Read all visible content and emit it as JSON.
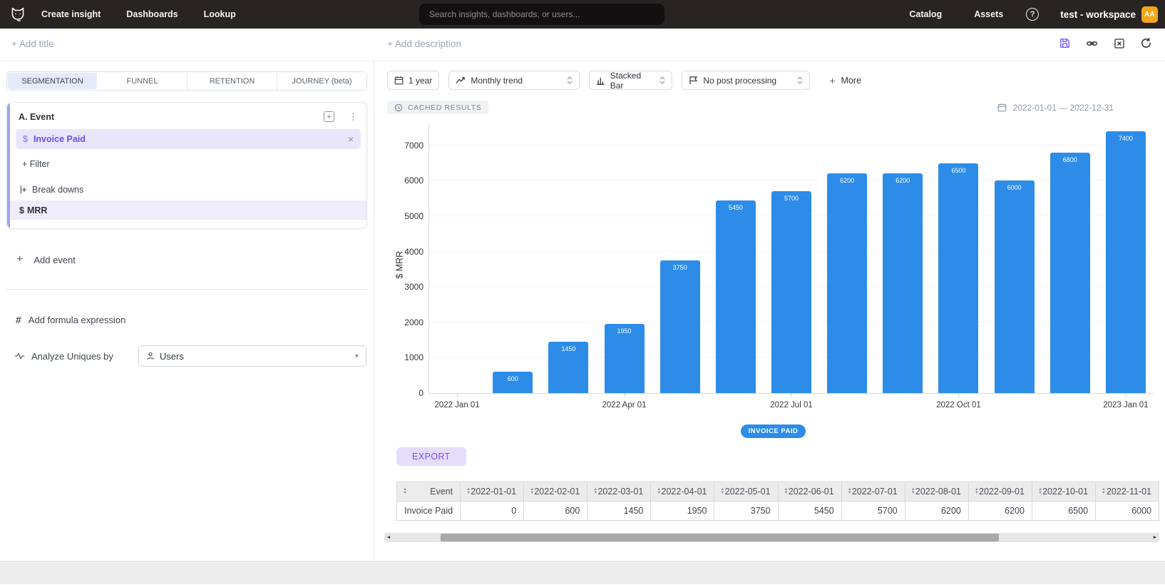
{
  "colors": {
    "accent": "#7b5cfa",
    "bar_blue": "#2d8ce8",
    "avatar": "#f2a71b",
    "nav_bg": "#292424",
    "selected_row_bg": "#e9e6fc"
  },
  "topnav": {
    "items": [
      "Create insight",
      "Dashboards",
      "Lookup"
    ],
    "search_placeholder": "Search insights, dashboards, or users...",
    "catalog": "Catalog",
    "assets": "Assets",
    "workspace": "test - workspace",
    "avatar_initials": "AA"
  },
  "toolbar": {
    "add_title": "+ Add title",
    "add_description": "+ Add description"
  },
  "builder": {
    "tabs": [
      "SEGMENTATION",
      "FUNNEL",
      "RETENTION",
      "JOURNEY (beta)"
    ],
    "active_tab": "SEGMENTATION",
    "event_card": {
      "header": "A.  Event",
      "event_symbol": "$",
      "event_name": "Invoice Paid",
      "filter_label": "+ Filter",
      "breakdowns_label": "Break downs",
      "breakdown_symbol": "$",
      "breakdown_value": "MRR"
    },
    "add_event_label": "Add event",
    "add_formula_label": "Add formula expression",
    "analyze_label": "Analyze Uniques by",
    "analyze_value": "Users"
  },
  "controls": {
    "date_button": "1 year",
    "trend_select": "Monthly trend",
    "chart_type_select": "Stacked Bar",
    "post_processing_select": "No post processing",
    "more_label": "More"
  },
  "results_meta": {
    "cached_badge": "CACHED RESULTS",
    "date_range": "2022-01-01 — 2022-12-31"
  },
  "chart_data": {
    "type": "bar",
    "title": "",
    "xlabel": "",
    "ylabel": "$ MRR",
    "x": [
      "2022-01-01",
      "2022-02-01",
      "2022-03-01",
      "2022-04-01",
      "2022-05-01",
      "2022-06-01",
      "2022-07-01",
      "2022-08-01",
      "2022-09-01",
      "2022-10-01",
      "2022-11-01",
      "2022-12-01",
      "2023-01-01"
    ],
    "series": [
      {
        "name": "INVOICE PAID",
        "values": [
          0,
          600,
          1450,
          1950,
          3750,
          5450,
          5700,
          6200,
          6200,
          6500,
          6000,
          6800,
          7400
        ]
      }
    ],
    "x_tick_labels": [
      {
        "index": 0,
        "label": "2022 Jan 01"
      },
      {
        "index": 3,
        "label": "2022 Apr 01"
      },
      {
        "index": 6,
        "label": "2022 Jul 01"
      },
      {
        "index": 9,
        "label": "2022 Oct 01"
      },
      {
        "index": 12,
        "label": "2023 Jan 01"
      }
    ],
    "y_ticks": [
      0,
      1000,
      2000,
      3000,
      4000,
      5000,
      6000,
      7000
    ],
    "ylim": [
      0,
      7600
    ],
    "grid": true,
    "legend_position": "bottom",
    "bar_color": "#2d8ce8"
  },
  "export_label": "EXPORT",
  "table": {
    "columns": [
      "Event",
      "2022-01-01",
      "2022-02-01",
      "2022-03-01",
      "2022-04-01",
      "2022-05-01",
      "2022-06-01",
      "2022-07-01",
      "2022-08-01",
      "2022-09-01",
      "2022-10-01",
      "2022-11-01"
    ],
    "rows": [
      [
        "Invoice Paid",
        "0",
        "600",
        "1450",
        "1950",
        "3750",
        "5450",
        "5700",
        "6200",
        "6200",
        "6500",
        "6000"
      ]
    ]
  }
}
